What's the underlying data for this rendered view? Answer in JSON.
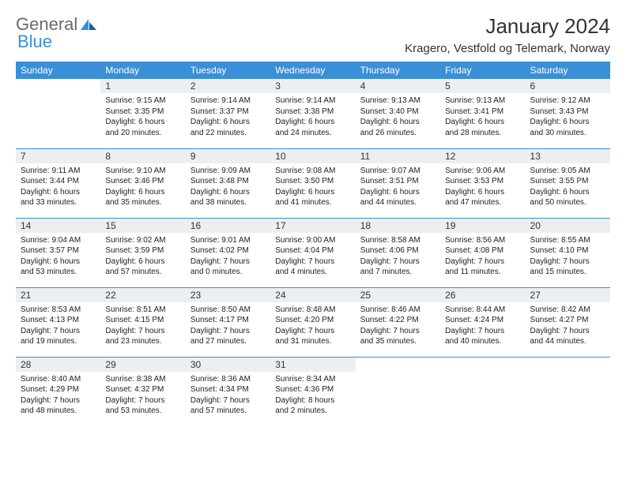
{
  "logo": {
    "general": "General",
    "blue": "Blue"
  },
  "title": "January 2024",
  "location": "Kragero, Vestfold og Telemark, Norway",
  "day_headers": [
    "Sunday",
    "Monday",
    "Tuesday",
    "Wednesday",
    "Thursday",
    "Friday",
    "Saturday"
  ],
  "colors": {
    "header_bg": "#3a8fd6",
    "header_text": "#ffffff",
    "daynum_bg": "#eceef0",
    "row_border": "#3a8fd6",
    "body_text": "#222222",
    "page_bg": "#ffffff"
  },
  "typography": {
    "title_fontsize": 26,
    "location_fontsize": 15,
    "header_fontsize": 12,
    "daynum_fontsize": 12,
    "cell_fontsize": 10
  },
  "layout": {
    "columns": 7,
    "rows": 5,
    "start_weekday_index": 1
  },
  "weeks": [
    [
      {
        "empty": true
      },
      {
        "num": "1",
        "sunrise": "Sunrise: 9:15 AM",
        "sunset": "Sunset: 3:35 PM",
        "d1": "Daylight: 6 hours",
        "d2": "and 20 minutes."
      },
      {
        "num": "2",
        "sunrise": "Sunrise: 9:14 AM",
        "sunset": "Sunset: 3:37 PM",
        "d1": "Daylight: 6 hours",
        "d2": "and 22 minutes."
      },
      {
        "num": "3",
        "sunrise": "Sunrise: 9:14 AM",
        "sunset": "Sunset: 3:38 PM",
        "d1": "Daylight: 6 hours",
        "d2": "and 24 minutes."
      },
      {
        "num": "4",
        "sunrise": "Sunrise: 9:13 AM",
        "sunset": "Sunset: 3:40 PM",
        "d1": "Daylight: 6 hours",
        "d2": "and 26 minutes."
      },
      {
        "num": "5",
        "sunrise": "Sunrise: 9:13 AM",
        "sunset": "Sunset: 3:41 PM",
        "d1": "Daylight: 6 hours",
        "d2": "and 28 minutes."
      },
      {
        "num": "6",
        "sunrise": "Sunrise: 9:12 AM",
        "sunset": "Sunset: 3:43 PM",
        "d1": "Daylight: 6 hours",
        "d2": "and 30 minutes."
      }
    ],
    [
      {
        "num": "7",
        "sunrise": "Sunrise: 9:11 AM",
        "sunset": "Sunset: 3:44 PM",
        "d1": "Daylight: 6 hours",
        "d2": "and 33 minutes."
      },
      {
        "num": "8",
        "sunrise": "Sunrise: 9:10 AM",
        "sunset": "Sunset: 3:46 PM",
        "d1": "Daylight: 6 hours",
        "d2": "and 35 minutes."
      },
      {
        "num": "9",
        "sunrise": "Sunrise: 9:09 AM",
        "sunset": "Sunset: 3:48 PM",
        "d1": "Daylight: 6 hours",
        "d2": "and 38 minutes."
      },
      {
        "num": "10",
        "sunrise": "Sunrise: 9:08 AM",
        "sunset": "Sunset: 3:50 PM",
        "d1": "Daylight: 6 hours",
        "d2": "and 41 minutes."
      },
      {
        "num": "11",
        "sunrise": "Sunrise: 9:07 AM",
        "sunset": "Sunset: 3:51 PM",
        "d1": "Daylight: 6 hours",
        "d2": "and 44 minutes."
      },
      {
        "num": "12",
        "sunrise": "Sunrise: 9:06 AM",
        "sunset": "Sunset: 3:53 PM",
        "d1": "Daylight: 6 hours",
        "d2": "and 47 minutes."
      },
      {
        "num": "13",
        "sunrise": "Sunrise: 9:05 AM",
        "sunset": "Sunset: 3:55 PM",
        "d1": "Daylight: 6 hours",
        "d2": "and 50 minutes."
      }
    ],
    [
      {
        "num": "14",
        "sunrise": "Sunrise: 9:04 AM",
        "sunset": "Sunset: 3:57 PM",
        "d1": "Daylight: 6 hours",
        "d2": "and 53 minutes."
      },
      {
        "num": "15",
        "sunrise": "Sunrise: 9:02 AM",
        "sunset": "Sunset: 3:59 PM",
        "d1": "Daylight: 6 hours",
        "d2": "and 57 minutes."
      },
      {
        "num": "16",
        "sunrise": "Sunrise: 9:01 AM",
        "sunset": "Sunset: 4:02 PM",
        "d1": "Daylight: 7 hours",
        "d2": "and 0 minutes."
      },
      {
        "num": "17",
        "sunrise": "Sunrise: 9:00 AM",
        "sunset": "Sunset: 4:04 PM",
        "d1": "Daylight: 7 hours",
        "d2": "and 4 minutes."
      },
      {
        "num": "18",
        "sunrise": "Sunrise: 8:58 AM",
        "sunset": "Sunset: 4:06 PM",
        "d1": "Daylight: 7 hours",
        "d2": "and 7 minutes."
      },
      {
        "num": "19",
        "sunrise": "Sunrise: 8:56 AM",
        "sunset": "Sunset: 4:08 PM",
        "d1": "Daylight: 7 hours",
        "d2": "and 11 minutes."
      },
      {
        "num": "20",
        "sunrise": "Sunrise: 8:55 AM",
        "sunset": "Sunset: 4:10 PM",
        "d1": "Daylight: 7 hours",
        "d2": "and 15 minutes."
      }
    ],
    [
      {
        "num": "21",
        "sunrise": "Sunrise: 8:53 AM",
        "sunset": "Sunset: 4:13 PM",
        "d1": "Daylight: 7 hours",
        "d2": "and 19 minutes."
      },
      {
        "num": "22",
        "sunrise": "Sunrise: 8:51 AM",
        "sunset": "Sunset: 4:15 PM",
        "d1": "Daylight: 7 hours",
        "d2": "and 23 minutes."
      },
      {
        "num": "23",
        "sunrise": "Sunrise: 8:50 AM",
        "sunset": "Sunset: 4:17 PM",
        "d1": "Daylight: 7 hours",
        "d2": "and 27 minutes."
      },
      {
        "num": "24",
        "sunrise": "Sunrise: 8:48 AM",
        "sunset": "Sunset: 4:20 PM",
        "d1": "Daylight: 7 hours",
        "d2": "and 31 minutes."
      },
      {
        "num": "25",
        "sunrise": "Sunrise: 8:46 AM",
        "sunset": "Sunset: 4:22 PM",
        "d1": "Daylight: 7 hours",
        "d2": "and 35 minutes."
      },
      {
        "num": "26",
        "sunrise": "Sunrise: 8:44 AM",
        "sunset": "Sunset: 4:24 PM",
        "d1": "Daylight: 7 hours",
        "d2": "and 40 minutes."
      },
      {
        "num": "27",
        "sunrise": "Sunrise: 8:42 AM",
        "sunset": "Sunset: 4:27 PM",
        "d1": "Daylight: 7 hours",
        "d2": "and 44 minutes."
      }
    ],
    [
      {
        "num": "28",
        "sunrise": "Sunrise: 8:40 AM",
        "sunset": "Sunset: 4:29 PM",
        "d1": "Daylight: 7 hours",
        "d2": "and 48 minutes."
      },
      {
        "num": "29",
        "sunrise": "Sunrise: 8:38 AM",
        "sunset": "Sunset: 4:32 PM",
        "d1": "Daylight: 7 hours",
        "d2": "and 53 minutes."
      },
      {
        "num": "30",
        "sunrise": "Sunrise: 8:36 AM",
        "sunset": "Sunset: 4:34 PM",
        "d1": "Daylight: 7 hours",
        "d2": "and 57 minutes."
      },
      {
        "num": "31",
        "sunrise": "Sunrise: 8:34 AM",
        "sunset": "Sunset: 4:36 PM",
        "d1": "Daylight: 8 hours",
        "d2": "and 2 minutes."
      },
      {
        "empty": true
      },
      {
        "empty": true
      },
      {
        "empty": true
      }
    ]
  ]
}
